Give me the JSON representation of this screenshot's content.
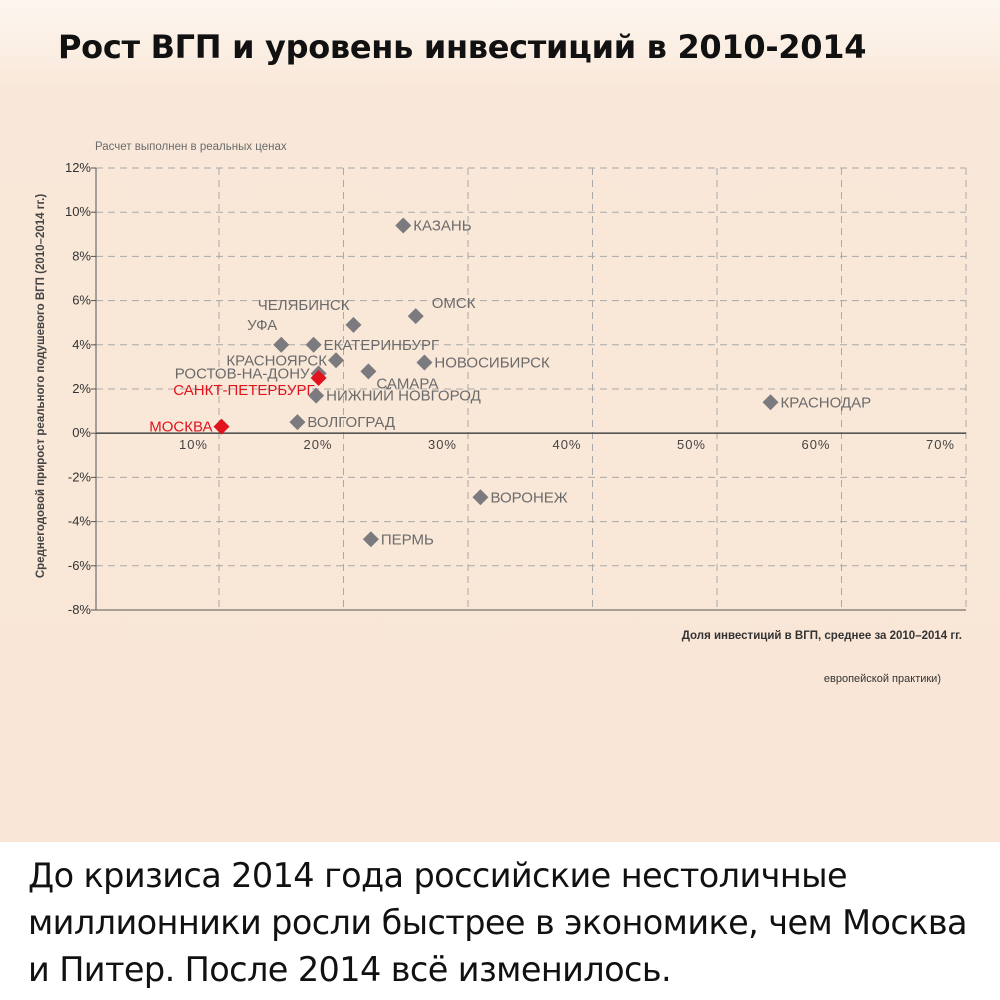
{
  "title": "Рост ВГП и уровень инвестиций в 2010-2014",
  "caption": "До кризиса 2014 года российские нестоличные миллионники росли быстрее в экономике, чем Москва и Питер. После 2014 всё изменилось.",
  "colors": {
    "point_default": "#7b7b7f",
    "point_highlight": "#e1141e",
    "text_default": "#6b6b6b",
    "grid": "#a9a9a9",
    "axis": "#555555"
  },
  "chart_data": {
    "type": "scatter",
    "note": "Расчет выполнен в реальных ценах",
    "xlabel": "Доля инвестиций в ВГП, среднее за 2010–2014 гг.",
    "ylabel": "Среднегодовой прирост реального подушевого ВГП (2010–2014 гг.)",
    "footnote": "европейской практики)",
    "xlim": [
      0,
      70
    ],
    "ylim": [
      -8,
      12
    ],
    "x_ticks": [
      10,
      20,
      30,
      40,
      50,
      60,
      70
    ],
    "x_tick_labels": [
      "10%",
      "20%",
      "30%",
      "40%",
      "50%",
      "60%",
      "70%"
    ],
    "y_ticks": [
      12,
      10,
      8,
      6,
      4,
      2,
      0,
      -2,
      -4,
      -6,
      -8
    ],
    "y_tick_labels": [
      "12%",
      "10%",
      "8%",
      "6%",
      "4%",
      "2%",
      "0%",
      "-2%",
      "-4%",
      "-6%",
      "-8%"
    ],
    "grid": true,
    "points": [
      {
        "label": "КАЗАНЬ",
        "x": 24.8,
        "y": 9.4,
        "highlight": false,
        "label_pos": "right"
      },
      {
        "label": "ЧЕЛЯБИНСК",
        "x": 20.8,
        "y": 4.9,
        "highlight": false,
        "label_pos": "upper-left"
      },
      {
        "label": "ОМСК",
        "x": 25.8,
        "y": 5.3,
        "highlight": false,
        "label_pos": "upper-right"
      },
      {
        "label": "УФА",
        "x": 15.0,
        "y": 4.0,
        "highlight": false,
        "label_pos": "upper-left"
      },
      {
        "label": "ЕКАТЕРИНБУРГ",
        "x": 17.6,
        "y": 4.0,
        "highlight": false,
        "label_pos": "right"
      },
      {
        "label": "КРАСНОЯРСК",
        "x": 19.4,
        "y": 3.3,
        "highlight": false,
        "label_pos": "left"
      },
      {
        "label": "НОВОСИБИРСК",
        "x": 26.5,
        "y": 3.2,
        "highlight": false,
        "label_pos": "right"
      },
      {
        "label": "РОСТОВ-НА-ДОНУ",
        "x": 18.0,
        "y": 2.7,
        "highlight": false,
        "label_pos": "left"
      },
      {
        "label": "САМАРА",
        "x": 22.0,
        "y": 2.8,
        "highlight": false,
        "label_pos": "lower-right"
      },
      {
        "label": "САНКТ-ПЕТЕРБУРГ",
        "x": 18.0,
        "y": 2.5,
        "highlight": true,
        "label_pos": "lower-left"
      },
      {
        "label": "НИЖНИЙ НОВГОРОД",
        "x": 17.8,
        "y": 1.7,
        "highlight": false,
        "label_pos": "right"
      },
      {
        "label": "КРАСНОДАР",
        "x": 54.3,
        "y": 1.4,
        "highlight": false,
        "label_pos": "right"
      },
      {
        "label": "ВОЛГОГРАД",
        "x": 16.3,
        "y": 0.5,
        "highlight": false,
        "label_pos": "right"
      },
      {
        "label": "МОСКВА",
        "x": 10.2,
        "y": 0.3,
        "highlight": true,
        "label_pos": "left"
      },
      {
        "label": "ВОРОНЕЖ",
        "x": 31.0,
        "y": -2.9,
        "highlight": false,
        "label_pos": "right"
      },
      {
        "label": "ПЕРМЬ",
        "x": 22.2,
        "y": -4.8,
        "highlight": false,
        "label_pos": "right"
      }
    ]
  }
}
